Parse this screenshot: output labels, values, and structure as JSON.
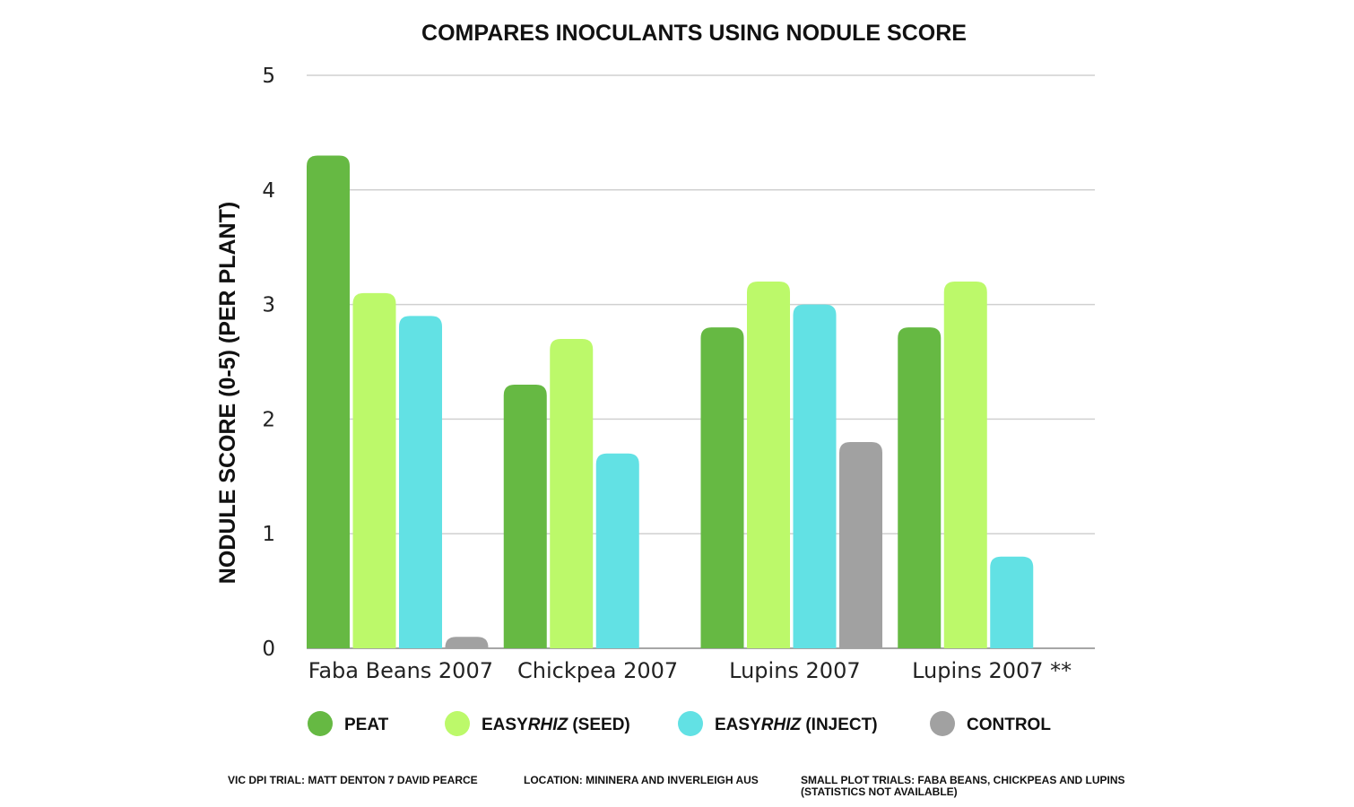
{
  "chart_data": {
    "type": "bar",
    "title": "COMPARES INOCULANTS USING NODULE SCORE",
    "ylabel": "NODULE SCORE (0-5) (PER PLANT)",
    "xlabel": "",
    "ylim": [
      0,
      5
    ],
    "yticks": [
      "0",
      "1",
      "2",
      "3",
      "4",
      "5"
    ],
    "grid": true,
    "legend_position": "bottom",
    "categories": [
      "Faba Beans 2007",
      "Chickpea 2007",
      "Lupins 2007",
      "Lupins 2007 **"
    ],
    "series": [
      {
        "name": "PEAT",
        "legend_parts": [
          {
            "text": "PEAT",
            "italic": false
          }
        ],
        "color": "#66b943",
        "values": [
          4.3,
          2.3,
          2.8,
          2.8
        ]
      },
      {
        "name": "EASYRHIZ (SEED)",
        "legend_parts": [
          {
            "text": "EASY",
            "italic": false
          },
          {
            "text": "RHIZ",
            "italic": true
          },
          {
            "text": " (SEED)",
            "italic": false
          }
        ],
        "color": "#bcf96a",
        "values": [
          3.1,
          2.7,
          3.2,
          3.2
        ]
      },
      {
        "name": "EASYRHIZ (INJECT)",
        "legend_parts": [
          {
            "text": "EASY",
            "italic": false
          },
          {
            "text": "RHIZ",
            "italic": true
          },
          {
            "text": " (INJECT)",
            "italic": false
          }
        ],
        "color": "#62e1e4",
        "values": [
          2.9,
          1.7,
          3.0,
          0.8
        ]
      },
      {
        "name": "CONTROL",
        "legend_parts": [
          {
            "text": "CONTROL",
            "italic": false
          }
        ],
        "color": "#a1a1a1",
        "values": [
          0.1,
          0,
          1.8,
          0
        ]
      }
    ]
  },
  "footer": {
    "trial": "VIC DPI TRIAL: MATT DENTON 7 DAVID PEARCE",
    "location": "LOCATION: MININERA AND INVERLEIGH AUS",
    "plot_line1": "SMALL PLOT TRIALS: FABA BEANS, CHICKPEAS AND LUPINS",
    "plot_line2": "(STATISTICS NOT AVAILABLE)"
  },
  "colors": {
    "gridline": "#d0d0d0",
    "axis": "#888888"
  }
}
